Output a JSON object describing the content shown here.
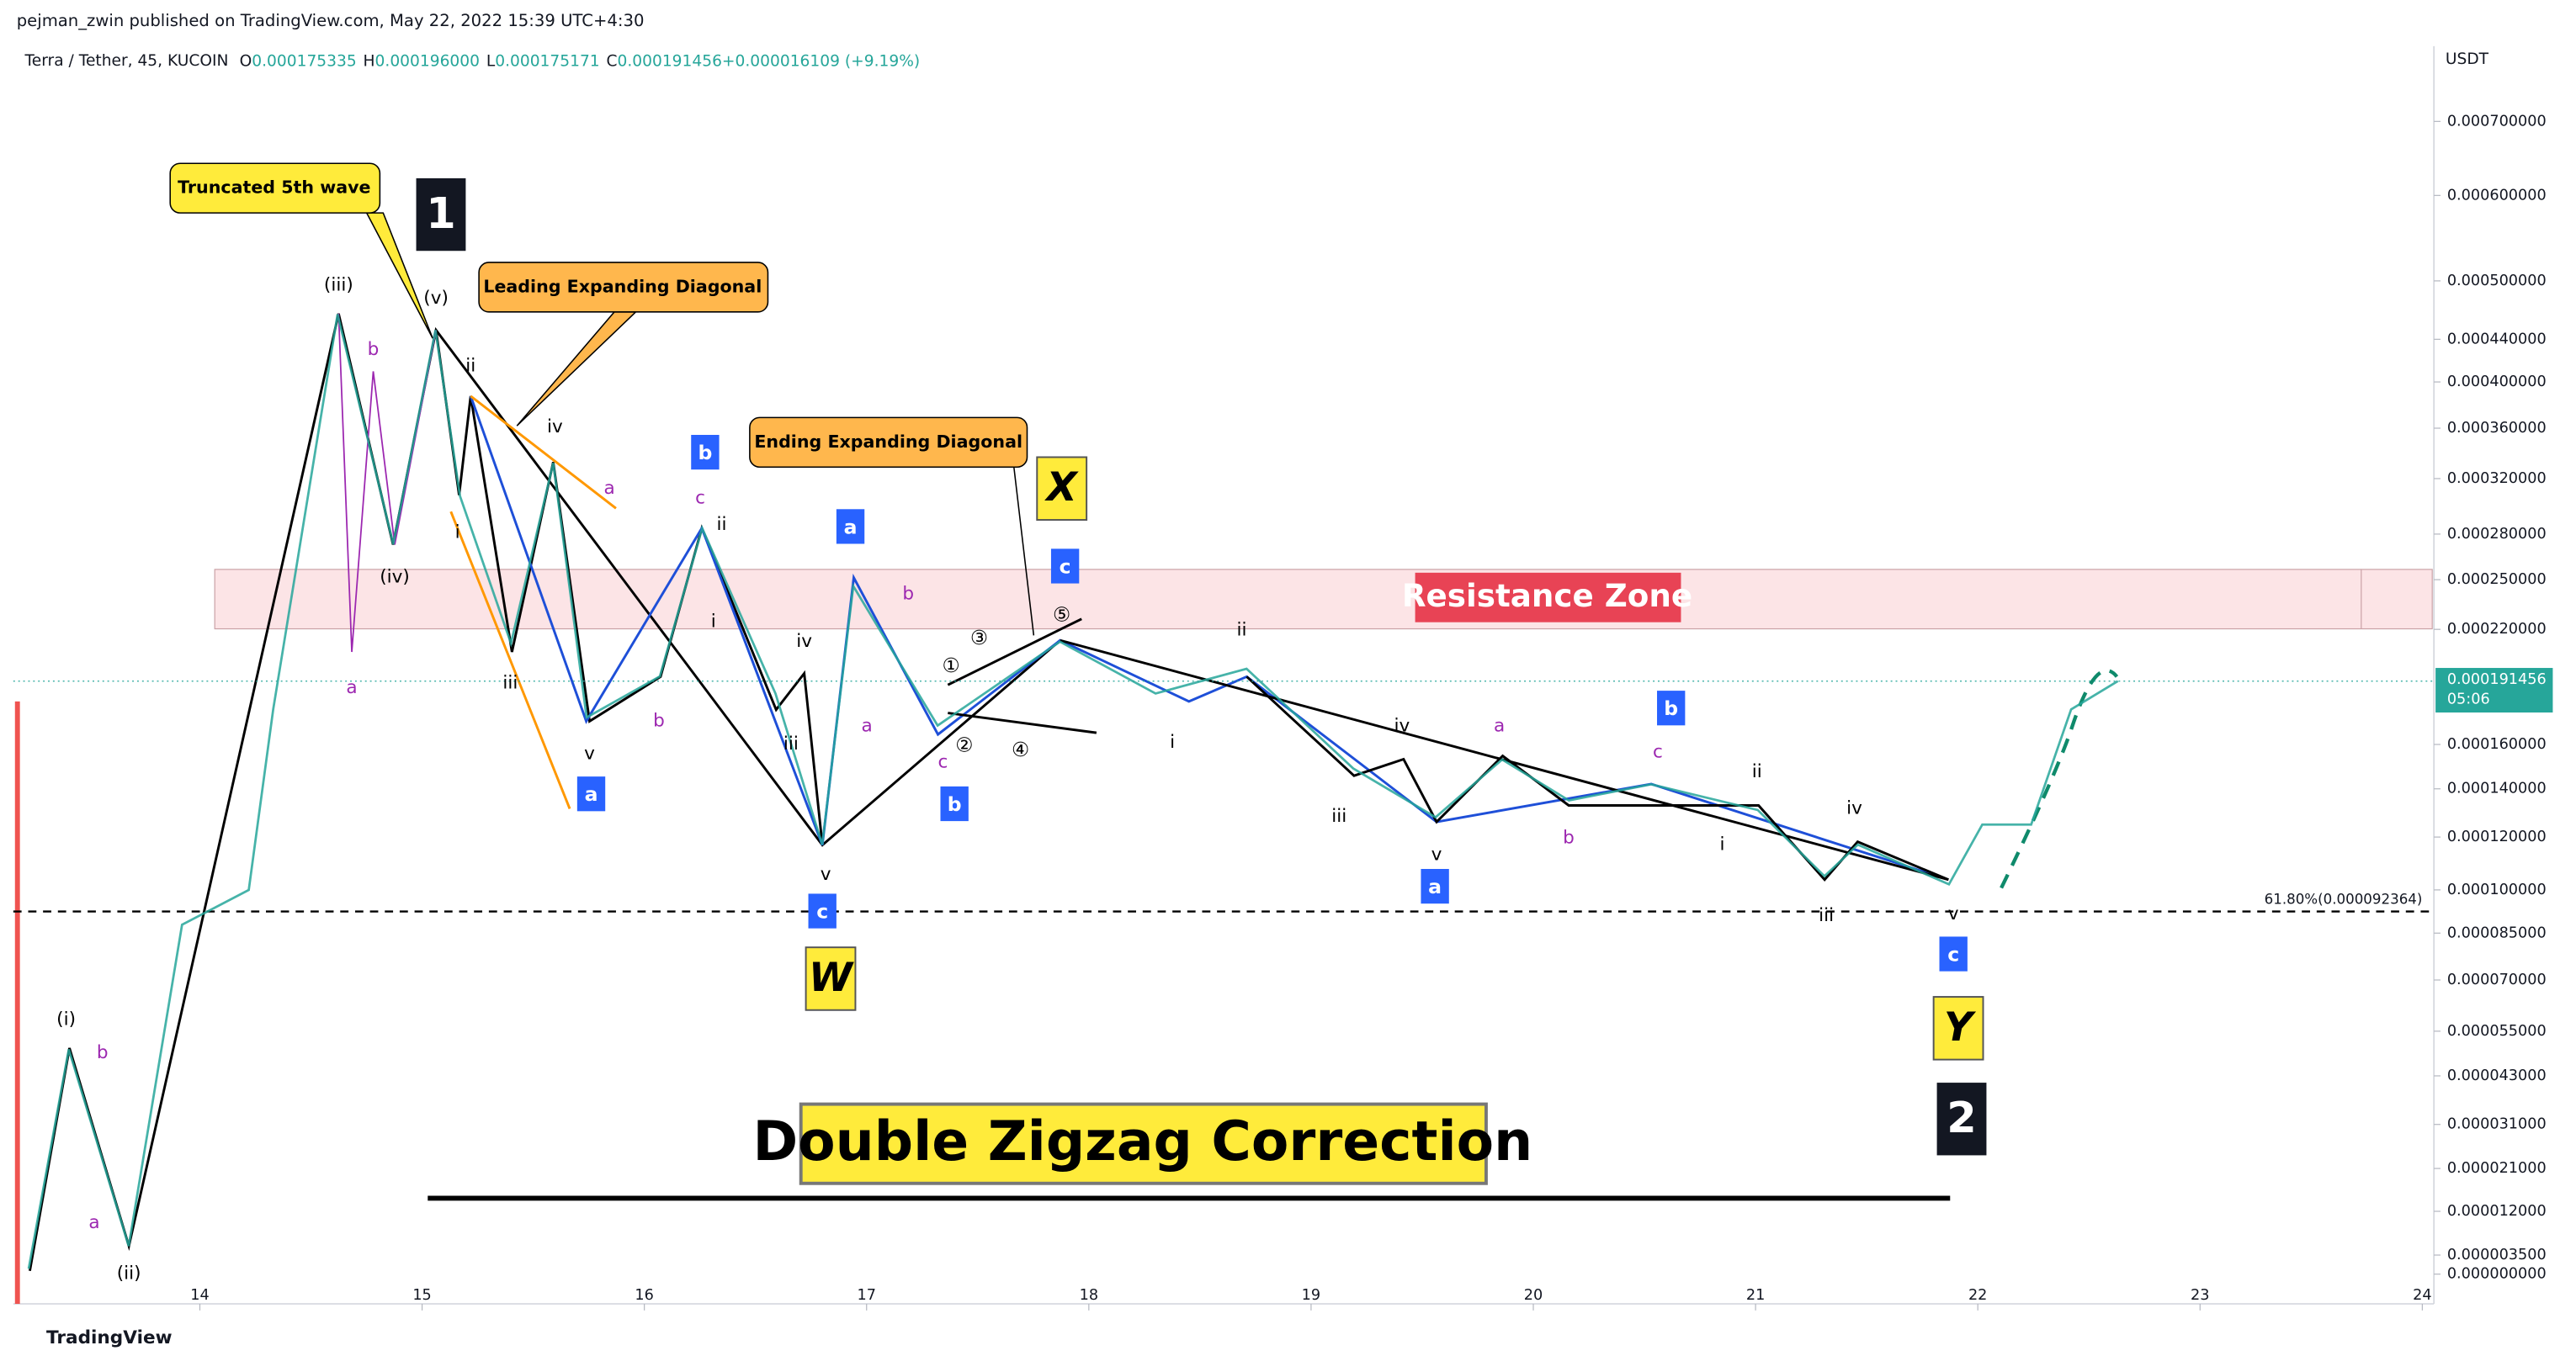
{
  "header": "pejman_zwin published on TradingView.com, May 22, 2022 15:39 UTC+4:30",
  "chart_data": {
    "type": "line",
    "symbol": "Terra / Tether, 45, KUCOIN",
    "ohlc": [
      [
        "O",
        "0.000175335"
      ],
      [
        "H",
        "0.000196000"
      ],
      [
        "L",
        "0.000175171"
      ],
      [
        "C",
        "0.000191456"
      ],
      [
        "",
        "+0.000016109 (+9.19%)"
      ]
    ],
    "currency": "USDT",
    "color": "#26a69a",
    "yscale": "log",
    "x": [
      13.23,
      13.41,
      13.68,
      13.92,
      14.22,
      14.33,
      14.62,
      14.87,
      15.06,
      15.17,
      15.4,
      15.59,
      15.74,
      16.07,
      16.26,
      16.59,
      16.8,
      16.94,
      17.32,
      17.87,
      18.3,
      18.71,
      19.19,
      19.56,
      19.86,
      20.16,
      20.53,
      21.01,
      21.31,
      21.46,
      21.87,
      22.02,
      22.24,
      22.42,
      22.63
    ],
    "values": [
      1e-06,
      5e-05,
      5.2e-06,
      8.78e-05,
      0.0001,
      0.000177,
      0.000465,
      0.000273,
      0.000449,
      0.000307,
      0.000212,
      0.000332,
      0.000173,
      0.000194,
      0.000284,
      0.000185,
      0.000117,
      0.000246,
      0.000169,
      0.000213,
      0.000185,
      0.000198,
      0.000149,
      0.000128,
      0.000153,
      0.000135,
      0.000142,
      0.000131,
      0.000105,
      0.000117,
      0.000102,
      0.000125,
      0.000125,
      0.000177,
      0.000191456
    ],
    "last_price": 0.000191456,
    "countdown": "05:06",
    "xlim": [
      13.2,
      24.05
    ],
    "xticks": [
      14,
      15,
      16,
      17,
      18,
      19,
      20,
      21,
      22,
      23,
      24
    ],
    "ylim": [
      0,
      0.0008
    ],
    "yticks": [
      {
        "value": 0.0007,
        "label": "0.000700000"
      },
      {
        "value": 0.0006,
        "label": "0.000600000"
      },
      {
        "value": 0.0005,
        "label": "0.000500000"
      },
      {
        "value": 0.00044,
        "label": "0.000440000"
      },
      {
        "value": 0.0004,
        "label": "0.000400000"
      },
      {
        "value": 0.00036,
        "label": "0.000360000"
      },
      {
        "value": 0.00032,
        "label": "0.000320000"
      },
      {
        "value": 0.00028,
        "label": "0.000280000"
      },
      {
        "value": 0.00025,
        "label": "0.000250000"
      },
      {
        "value": 0.00022,
        "label": "0.000220000"
      },
      {
        "value": 0.00016,
        "label": "0.000160000"
      },
      {
        "value": 0.00014,
        "label": "0.000140000"
      },
      {
        "value": 0.00012,
        "label": "0.000120000"
      },
      {
        "value": 0.0001,
        "label": "0.000100000"
      },
      {
        "value": 8.5e-05,
        "label": "0.000085000"
      },
      {
        "value": 7e-05,
        "label": "0.000070000"
      },
      {
        "value": 5.5e-05,
        "label": "0.000055000"
      },
      {
        "value": 4.3e-05,
        "label": "0.000043000"
      },
      {
        "value": 3.1e-05,
        "label": "0.000031000"
      },
      {
        "value": 2.1e-05,
        "label": "0.000021000"
      },
      {
        "value": 1.2e-05,
        "label": "0.000012000"
      },
      {
        "value": 3.5e-06,
        "label": "0.000003500"
      },
      {
        "value": 0,
        "label": "0.000000000"
      }
    ],
    "fib_level": {
      "value": 9.2364e-05,
      "label": "61.80%(0.000092364)"
    },
    "resistance_label": "Resistance Zone",
    "title": "Double Zigzag Correction",
    "callouts": [
      "Truncated 5th wave",
      "Leading Expanding Diagonal",
      "Ending Expanding Diagonal"
    ],
    "wave_labels": [
      "(i)",
      "(iii)",
      "(iv)",
      "(v)",
      "(ii)",
      "ii",
      "i",
      "iii",
      "iv",
      "v",
      "ii",
      "i",
      "iv",
      "iii",
      "v",
      "ii",
      "i",
      "iv",
      "iii",
      "v",
      "ii",
      "i",
      "iv",
      "iii",
      "v"
    ],
    "sub_labels": [
      "b",
      "a",
      "b",
      "a",
      "a",
      "b",
      "c",
      "b",
      "a",
      "c",
      "a",
      "b",
      "c"
    ],
    "circled_labels": [
      "①",
      "③",
      "⑤",
      "②",
      "④"
    ],
    "blue_boxes": [
      "a",
      "b",
      "a",
      "c",
      "b",
      "c",
      "a",
      "b",
      "c"
    ],
    "yellow_boxes": [
      "X",
      "W",
      "Y"
    ],
    "black_boxes": [
      "1",
      "2"
    ]
  },
  "footer": "TradingView"
}
